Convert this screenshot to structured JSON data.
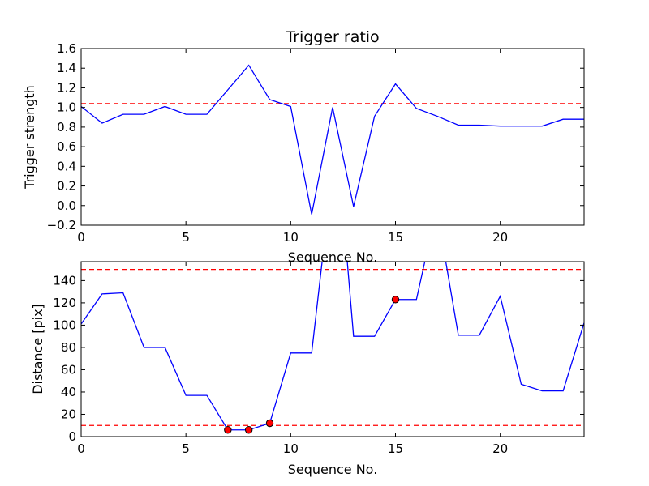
{
  "chart_data": [
    {
      "type": "line",
      "title": "Trigger ratio",
      "xlabel": "Sequence No.",
      "ylabel": "Trigger strength",
      "xlim": [
        0,
        24
      ],
      "ylim": [
        -0.2,
        1.6
      ],
      "xticks": [
        0,
        5,
        10,
        15,
        20
      ],
      "yticks": [
        -0.2,
        0.0,
        0.2,
        0.4,
        0.6,
        0.8,
        1.0,
        1.2,
        1.4,
        1.6
      ],
      "ytick_labels": [
        "−0.2",
        "0.0",
        "0.2",
        "0.4",
        "0.6",
        "0.8",
        "1.0",
        "1.2",
        "1.4",
        "1.6"
      ],
      "grid": false,
      "series": [
        {
          "color": "#0000ff",
          "x": [
            0,
            1,
            2,
            3,
            4,
            5,
            6,
            7,
            8,
            9,
            10,
            11,
            12,
            13,
            14,
            15,
            16,
            17,
            18,
            19,
            20,
            21,
            22,
            23,
            24
          ],
          "y": [
            1.01,
            0.84,
            0.93,
            0.93,
            1.01,
            0.93,
            0.93,
            1.18,
            1.43,
            1.08,
            1.01,
            -0.09,
            1.0,
            -0.01,
            0.91,
            1.24,
            0.99,
            0.91,
            0.82,
            0.82,
            0.81,
            0.81,
            0.81,
            0.88,
            0.88
          ]
        }
      ],
      "hlines": [
        {
          "y": 1.04,
          "color": "#ff0000",
          "style": "dashed"
        }
      ]
    },
    {
      "type": "line",
      "title": "",
      "xlabel": "Sequence No.",
      "ylabel": "Distance [pix]",
      "xlim": [
        0,
        24
      ],
      "ylim": [
        0,
        157
      ],
      "xticks": [
        0,
        5,
        10,
        15,
        20
      ],
      "yticks": [
        0,
        20,
        40,
        60,
        80,
        100,
        120,
        140
      ],
      "ytick_labels": [
        "0",
        "20",
        "40",
        "60",
        "80",
        "100",
        "120",
        "140"
      ],
      "grid": false,
      "series": [
        {
          "color": "#0000ff",
          "x": [
            0,
            1,
            2,
            3,
            4,
            5,
            6,
            7,
            8,
            9,
            10,
            11,
            11.5,
            12.7,
            13,
            14,
            15,
            16,
            16.4,
            17.4,
            18,
            19,
            20,
            21,
            22,
            23,
            24
          ],
          "y": [
            101,
            128,
            129,
            80,
            80,
            37,
            37,
            6,
            6,
            12,
            75,
            75,
            157,
            157,
            90,
            90,
            123,
            123,
            157,
            157,
            91,
            91,
            126,
            47,
            41,
            41,
            102
          ]
        }
      ],
      "markers": {
        "color": "#ff0000",
        "x": [
          7,
          8,
          9,
          15
        ],
        "y": [
          6,
          6,
          12,
          123
        ]
      },
      "hlines": [
        {
          "y": 150,
          "color": "#ff0000",
          "style": "dashed"
        },
        {
          "y": 10,
          "color": "#ff0000",
          "style": "dashed"
        }
      ]
    }
  ]
}
